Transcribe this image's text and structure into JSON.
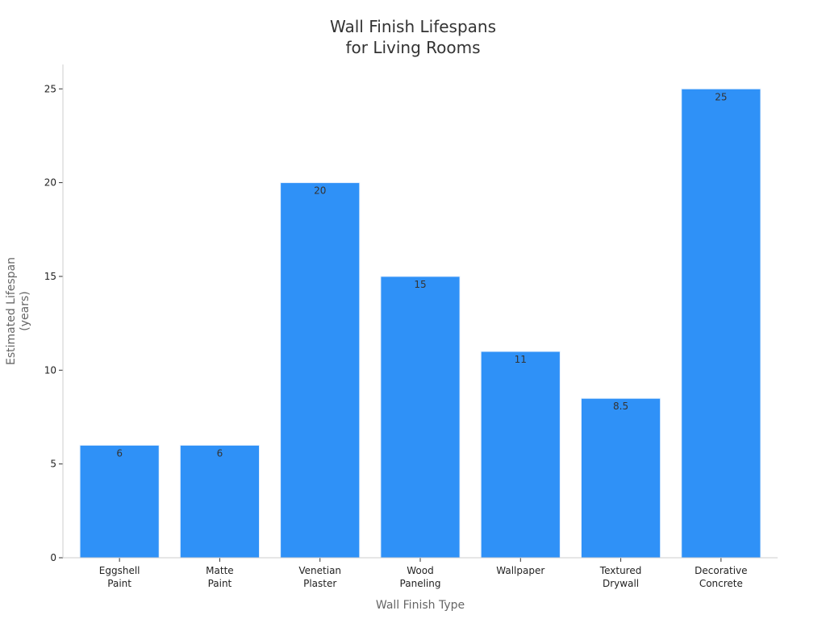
{
  "chart_data": {
    "type": "bar",
    "title": [
      "Wall Finish Lifespans",
      "for Living Rooms"
    ],
    "xlabel": "Wall Finish Type",
    "ylabel": [
      "Estimated Lifespan",
      "(years)"
    ],
    "categories": [
      [
        "Eggshell",
        "Paint"
      ],
      [
        "Matte",
        "Paint"
      ],
      [
        "Venetian",
        "Plaster"
      ],
      [
        "Wood",
        "Paneling"
      ],
      [
        "Wallpaper"
      ],
      [
        "Textured",
        "Drywall"
      ],
      [
        "Decorative",
        "Concrete"
      ]
    ],
    "values": [
      6,
      6,
      20,
      15,
      11,
      8.5,
      25
    ],
    "data_labels": [
      "6",
      "6",
      "20",
      "15",
      "11",
      "8.5",
      "25"
    ],
    "ylim": [
      0,
      26.3
    ],
    "yticks": [
      0,
      5,
      10,
      15,
      20,
      25
    ],
    "grid": false,
    "bar_color": "#2f91f7",
    "bar_edge_color": "#e8f2fe"
  }
}
